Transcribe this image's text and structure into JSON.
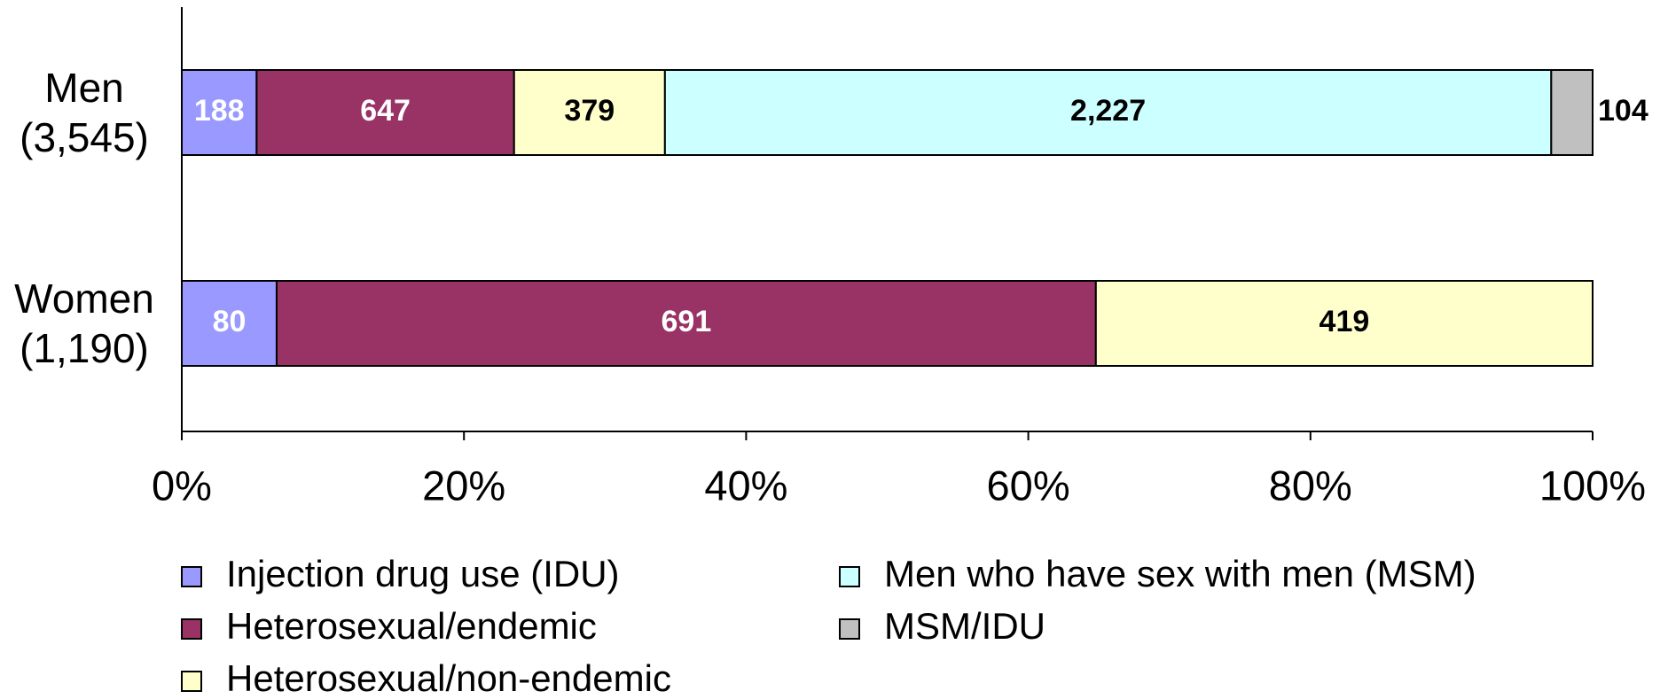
{
  "chart_data": {
    "type": "stacked_barh",
    "stacking": "percent",
    "categories": [
      "Men\n(3,545)",
      "Women\n(1,190)"
    ],
    "series": [
      {
        "name": "Injection drug use (IDU)",
        "color": "#9999ff",
        "label_color": "#ffffff",
        "values": [
          188,
          80
        ],
        "value_labels": [
          "188",
          "80"
        ]
      },
      {
        "name": "Heterosexual/endemic",
        "color": "#993366",
        "label_color": "#ffffff",
        "values": [
          647,
          691
        ],
        "value_labels": [
          "647",
          "691"
        ]
      },
      {
        "name": "Heterosexual/non-endemic",
        "color": "#ffffcc",
        "label_color": "#000000",
        "values": [
          379,
          419
        ],
        "value_labels": [
          "379",
          "419"
        ]
      },
      {
        "name": "Men who have sex with men (MSM)",
        "color": "#ccffff",
        "label_color": "#000000",
        "values": [
          2227,
          null
        ],
        "value_labels": [
          "2,227",
          null
        ]
      },
      {
        "name": "MSM/IDU",
        "color": "#c0c0c0",
        "label_color": "#000000",
        "values": [
          104,
          null
        ],
        "value_labels": [
          "104",
          null
        ]
      }
    ],
    "xlim": [
      0,
      100
    ],
    "xticks": [
      {
        "value": 0,
        "label": "0%"
      },
      {
        "value": 20,
        "label": "20%"
      },
      {
        "value": 40,
        "label": "40%"
      },
      {
        "value": 60,
        "label": "60%"
      },
      {
        "value": 80,
        "label": "80%"
      },
      {
        "value": 100,
        "label": "100%"
      }
    ],
    "grid": false
  }
}
